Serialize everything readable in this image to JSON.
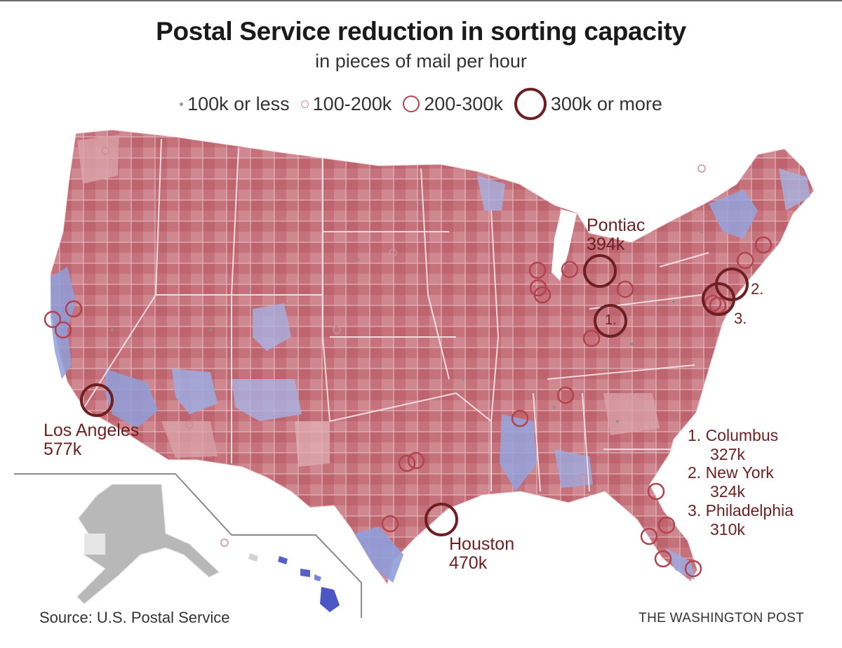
{
  "header": {
    "title": "Postal Service reduction in sorting capacity",
    "subtitle": "in pieces of mail per hour"
  },
  "legend": {
    "items": [
      {
        "label": "100k or less",
        "size": "dot"
      },
      {
        "label": "100-200k",
        "size": "small"
      },
      {
        "label": "200-300k",
        "size": "medium"
      },
      {
        "label": "300k or more",
        "size": "large"
      }
    ]
  },
  "colors": {
    "circle_large": "#6e1f22",
    "circle_medium": "#b3434e",
    "circle_small": "#c9919a",
    "land_red": "#c97a82",
    "land_blue": "#8f9fdc",
    "land_pink": "#dba4aa",
    "land_gray": "#b8b8b8"
  },
  "callouts": {
    "los_angeles": {
      "name": "Los Angeles",
      "value": "577k"
    },
    "pontiac": {
      "name": "Pontiac",
      "value": "394k"
    },
    "houston": {
      "name": "Houston",
      "value": "470k"
    },
    "marker_1": "1.",
    "marker_2": "2.",
    "marker_3": "3."
  },
  "key_list": [
    {
      "name": "1. Columbus",
      "value": "327k"
    },
    {
      "name": "2. New York",
      "value": "324k"
    },
    {
      "name": "3. Philadelphia",
      "value": "310k"
    }
  ],
  "footer": {
    "source": "Source: U.S. Postal Service",
    "credit": "THE WASHINGTON POST"
  }
}
